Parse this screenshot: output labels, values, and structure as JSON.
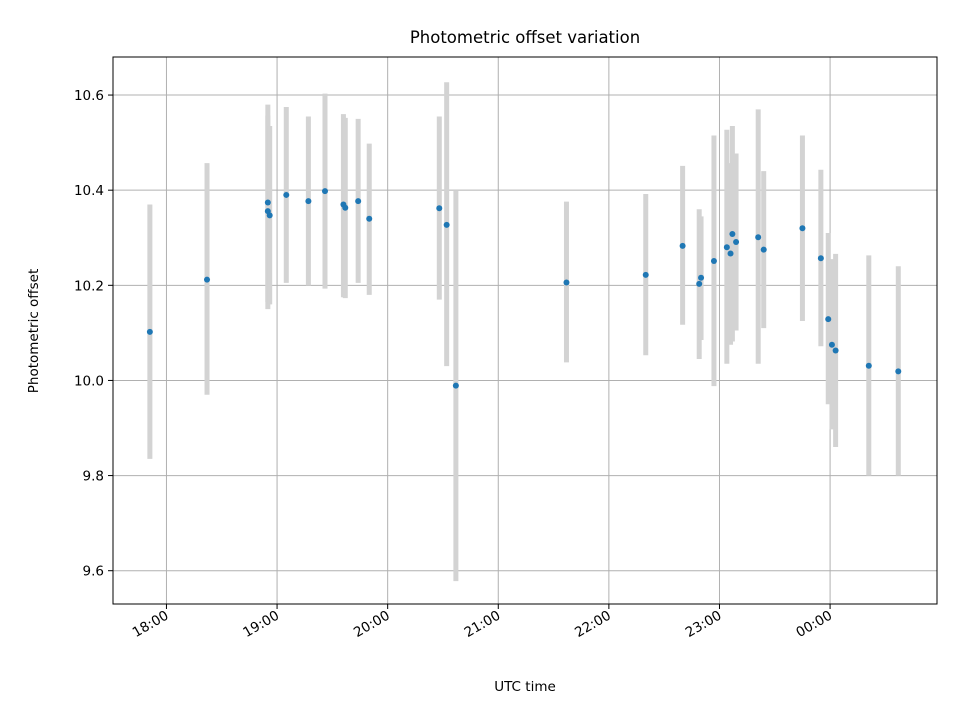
{
  "chart_data": {
    "type": "scatter",
    "title": "Photometric offset variation",
    "xlabel": "UTC time",
    "ylabel": "Photometric offset",
    "xlim": [
      "17:31",
      "00:58"
    ],
    "ylim": [
      9.53,
      10.68
    ],
    "grid": true,
    "x_ticks": [
      "18:00",
      "19:00",
      "20:00",
      "21:00",
      "22:00",
      "23:00",
      "00:00"
    ],
    "y_ticks": [
      "9.6",
      "9.8",
      "10.0",
      "10.2",
      "10.4",
      "10.6"
    ],
    "colors": {
      "point": "#1f77b4",
      "errorbar": "#d3d3d3",
      "grid": "#b0b0b0"
    },
    "points": [
      {
        "x": "17:51",
        "y": 10.102,
        "ylo": 9.835,
        "yhi": 10.37
      },
      {
        "x": "18:22",
        "y": 10.212,
        "ylo": 9.97,
        "yhi": 10.457
      },
      {
        "x": "18:55",
        "y": 10.374,
        "ylo": 10.165,
        "yhi": 10.58
      },
      {
        "x": "18:55",
        "y": 10.356,
        "ylo": 10.15,
        "yhi": 10.557
      },
      {
        "x": "18:56",
        "y": 10.347,
        "ylo": 10.16,
        "yhi": 10.535
      },
      {
        "x": "19:05",
        "y": 10.39,
        "ylo": 10.205,
        "yhi": 10.575
      },
      {
        "x": "19:17",
        "y": 10.377,
        "ylo": 10.2,
        "yhi": 10.555
      },
      {
        "x": "19:26",
        "y": 10.398,
        "ylo": 10.193,
        "yhi": 10.603
      },
      {
        "x": "19:36",
        "y": 10.37,
        "ylo": 10.175,
        "yhi": 10.56
      },
      {
        "x": "19:37",
        "y": 10.363,
        "ylo": 10.173,
        "yhi": 10.552
      },
      {
        "x": "19:44",
        "y": 10.377,
        "ylo": 10.205,
        "yhi": 10.55
      },
      {
        "x": "19:50",
        "y": 10.34,
        "ylo": 10.18,
        "yhi": 10.498
      },
      {
        "x": "20:28",
        "y": 10.362,
        "ylo": 10.17,
        "yhi": 10.555
      },
      {
        "x": "20:32",
        "y": 10.327,
        "ylo": 10.03,
        "yhi": 10.627
      },
      {
        "x": "20:37",
        "y": 9.989,
        "ylo": 9.578,
        "yhi": 10.4
      },
      {
        "x": "21:37",
        "y": 10.206,
        "ylo": 10.038,
        "yhi": 10.376
      },
      {
        "x": "22:20",
        "y": 10.222,
        "ylo": 10.053,
        "yhi": 10.392
      },
      {
        "x": "22:40",
        "y": 10.283,
        "ylo": 10.117,
        "yhi": 10.451
      },
      {
        "x": "22:49",
        "y": 10.203,
        "ylo": 10.045,
        "yhi": 10.36
      },
      {
        "x": "22:50",
        "y": 10.216,
        "ylo": 10.085,
        "yhi": 10.345
      },
      {
        "x": "22:57",
        "y": 10.251,
        "ylo": 9.988,
        "yhi": 10.515
      },
      {
        "x": "23:04",
        "y": 10.28,
        "ylo": 10.035,
        "yhi": 10.527
      },
      {
        "x": "23:06",
        "y": 10.267,
        "ylo": 10.075,
        "yhi": 10.457
      },
      {
        "x": "23:07",
        "y": 10.308,
        "ylo": 10.082,
        "yhi": 10.535
      },
      {
        "x": "23:09",
        "y": 10.291,
        "ylo": 10.105,
        "yhi": 10.477
      },
      {
        "x": "23:21",
        "y": 10.301,
        "ylo": 10.035,
        "yhi": 10.57
      },
      {
        "x": "23:24",
        "y": 10.275,
        "ylo": 10.11,
        "yhi": 10.44
      },
      {
        "x": "23:45",
        "y": 10.32,
        "ylo": 10.125,
        "yhi": 10.515
      },
      {
        "x": "23:55",
        "y": 10.257,
        "ylo": 10.072,
        "yhi": 10.443
      },
      {
        "x": "23:59",
        "y": 10.129,
        "ylo": 9.95,
        "yhi": 10.31
      },
      {
        "x": "00:01",
        "y": 10.075,
        "ylo": 9.897,
        "yhi": 10.255
      },
      {
        "x": "00:03",
        "y": 10.063,
        "ylo": 9.86,
        "yhi": 10.266
      },
      {
        "x": "00:21",
        "y": 10.031,
        "ylo": 9.8,
        "yhi": 10.263
      },
      {
        "x": "00:37",
        "y": 10.019,
        "ylo": 9.8,
        "yhi": 10.24
      }
    ]
  }
}
